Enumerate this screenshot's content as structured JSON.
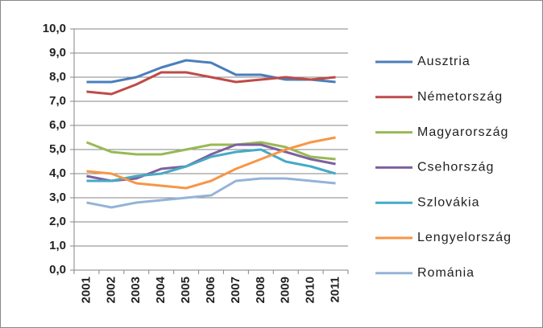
{
  "chart_data": {
    "type": "line",
    "categories": [
      "2001",
      "2002",
      "2003",
      "2004",
      "2005",
      "2006",
      "2007",
      "2008",
      "2009",
      "2010",
      "2011"
    ],
    "series": [
      {
        "name": "Ausztria",
        "color": "#4a7ebb",
        "values": [
          7.8,
          7.8,
          8.0,
          8.4,
          8.7,
          8.6,
          8.1,
          8.1,
          7.9,
          7.9,
          7.8
        ]
      },
      {
        "name": "Németország",
        "color": "#be4b48",
        "values": [
          7.4,
          7.3,
          7.7,
          8.2,
          8.2,
          8.0,
          7.8,
          7.9,
          8.0,
          7.9,
          8.0
        ]
      },
      {
        "name": "Magyarország",
        "color": "#98b954",
        "values": [
          5.3,
          4.9,
          4.8,
          4.8,
          5.0,
          5.2,
          5.2,
          5.3,
          5.1,
          4.7,
          4.6
        ]
      },
      {
        "name": "Csehország",
        "color": "#7d60a0",
        "values": [
          3.9,
          3.7,
          3.8,
          4.2,
          4.3,
          4.8,
          5.2,
          5.2,
          4.9,
          4.6,
          4.4
        ]
      },
      {
        "name": "Szlovákia",
        "color": "#46aac5",
        "values": [
          3.7,
          3.7,
          3.9,
          4.0,
          4.3,
          4.7,
          4.9,
          5.0,
          4.5,
          4.3,
          4.0
        ]
      },
      {
        "name": "Lengyelország",
        "color": "#f79646",
        "values": [
          4.1,
          4.0,
          3.6,
          3.5,
          3.4,
          3.7,
          4.2,
          4.6,
          5.0,
          5.3,
          5.5
        ]
      },
      {
        "name": "Románia",
        "color": "#95b3d7",
        "values": [
          2.8,
          2.6,
          2.8,
          2.9,
          3.0,
          3.1,
          3.7,
          3.8,
          3.8,
          3.7,
          3.6
        ]
      }
    ],
    "ylim": [
      0,
      10
    ],
    "yticks": [
      {
        "value": 0,
        "label": "0,0"
      },
      {
        "value": 1,
        "label": "1,0"
      },
      {
        "value": 2,
        "label": "2,0"
      },
      {
        "value": 3,
        "label": "3,0"
      },
      {
        "value": 4,
        "label": "4,0"
      },
      {
        "value": 5,
        "label": "5,0"
      },
      {
        "value": 6,
        "label": "6,0"
      },
      {
        "value": 7,
        "label": "7,0"
      },
      {
        "value": 8,
        "label": "8,0"
      },
      {
        "value": 9,
        "label": "9,0"
      },
      {
        "value": 10,
        "label": "10,0"
      }
    ],
    "grid": true,
    "legend": "right"
  }
}
